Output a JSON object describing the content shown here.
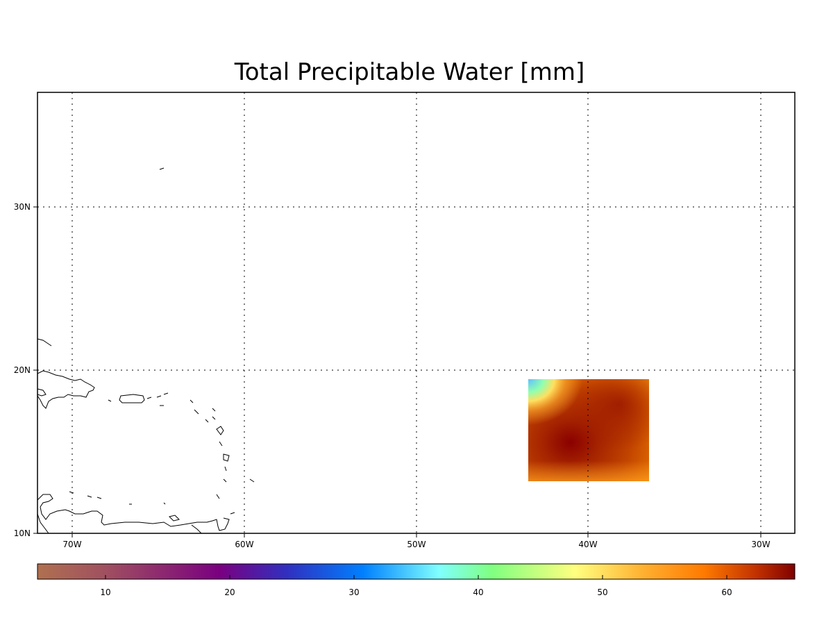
{
  "map": {
    "title": "Total Precipitable Water [mm]",
    "lon_labels": [
      "70W",
      "60W",
      "50W",
      "40W",
      "30W"
    ],
    "lat_labels": [
      "10N",
      "20N",
      "30N"
    ],
    "colorbar": {
      "tick_labels": [
        "10",
        "20",
        "30",
        "40",
        "50",
        "60"
      ],
      "stops": [
        "#b07050",
        "#a05060",
        "#7a0080",
        "#3030c0",
        "#0080ff",
        "#80ffff",
        "#80ff80",
        "#ffff80",
        "#ffb030",
        "#ff7a00",
        "#c03000",
        "#800000"
      ]
    },
    "field_colors": {
      "max": "#8a0000",
      "high": "#a52300",
      "mid": "#d45a00",
      "low": "#f08a10",
      "corner_cool": "#60c0ff",
      "corner_warm": "#ffe060"
    }
  }
}
